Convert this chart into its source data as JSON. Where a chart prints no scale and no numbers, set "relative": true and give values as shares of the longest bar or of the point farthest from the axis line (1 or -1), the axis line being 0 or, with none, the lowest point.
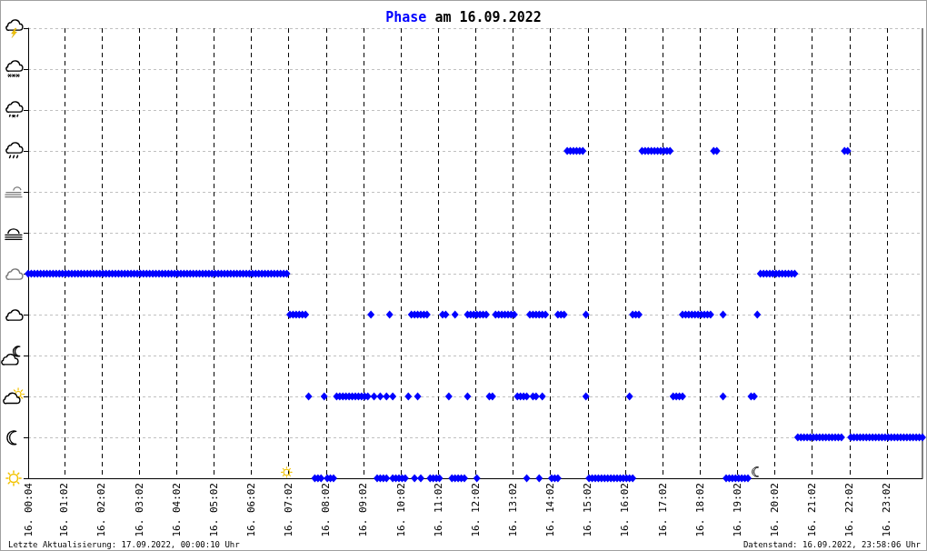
{
  "chart_data": {
    "type": "scatter",
    "title": "Phase am 16.09.2022",
    "annotations": [
      "Letzte Aktualisierung: 17.09.2022, 00:00:10 Uhr",
      "Datenstand: 16.09.2022, 23:58:06 Uhr"
    ],
    "color": "#0000ff",
    "marker": "diamond",
    "grid": true,
    "tick_labels": "x",
    "relative": true,
    "xlim": [
      "2022-09-16T00:04",
      "2022-09-16T23:59"
    ],
    "xticks": [
      {
        "value": "2022-09-16T00:04",
        "label": "16. 00:04"
      },
      {
        "value": "2022-09-16T01:02",
        "label": "16. 01:02"
      },
      {
        "value": "2022-09-16T02:02",
        "label": "16. 02:02"
      },
      {
        "value": "2022-09-16T03:02",
        "label": "16. 03:02"
      },
      {
        "value": "2022-09-16T04:02",
        "label": "16. 04:02"
      },
      {
        "value": "2022-09-16T05:02",
        "label": "16. 05:02"
      },
      {
        "value": "2022-09-16T06:02",
        "label": "16. 06:02"
      },
      {
        "value": "2022-09-16T07:02",
        "label": "16. 07:02"
      },
      {
        "value": "2022-09-16T08:02",
        "label": "16. 08:02"
      },
      {
        "value": "2022-09-16T09:02",
        "label": "16. 09:02"
      },
      {
        "value": "2022-09-16T10:02",
        "label": "16. 10:02"
      },
      {
        "value": "2022-09-16T11:02",
        "label": "16. 11:02"
      },
      {
        "value": "2022-09-16T12:02",
        "label": "16. 12:02"
      },
      {
        "value": "2022-09-16T13:02",
        "label": "16. 13:02"
      },
      {
        "value": "2022-09-16T14:02",
        "label": "16. 14:02"
      },
      {
        "value": "2022-09-16T15:02",
        "label": "16. 15:02"
      },
      {
        "value": "2022-09-16T16:02",
        "label": "16. 16:02"
      },
      {
        "value": "2022-09-16T17:02",
        "label": "16. 17:02"
      },
      {
        "value": "2022-09-16T18:02",
        "label": "16. 18:02"
      },
      {
        "value": "2022-09-16T19:02",
        "label": "16. 19:02"
      },
      {
        "value": "2022-09-16T20:02",
        "label": "16. 20:02"
      },
      {
        "value": "2022-09-16T21:02",
        "label": "16. 21:02"
      },
      {
        "value": "2022-09-16T22:02",
        "label": "16. 22:02"
      },
      {
        "value": "2022-09-16T23:02",
        "label": "16. 23:02"
      }
    ],
    "x": [
      "2022-09-16T00:04",
      "2022-09-16T00:09",
      "2022-09-16T00:14",
      "2022-09-16T00:19",
      "2022-09-16T00:24",
      "2022-09-16T00:29",
      "2022-09-16T00:34",
      "2022-09-16T00:39",
      "2022-09-16T00:44",
      "2022-09-16T00:49",
      "2022-09-16T00:54",
      "2022-09-16T00:59",
      "2022-09-16T01:04",
      "2022-09-16T01:09",
      "2022-09-16T01:14",
      "2022-09-16T01:19",
      "2022-09-16T01:24",
      "2022-09-16T01:29",
      "2022-09-16T01:34",
      "2022-09-16T01:39",
      "2022-09-16T01:44",
      "2022-09-16T01:49",
      "2022-09-16T01:54",
      "2022-09-16T01:59",
      "2022-09-16T02:04",
      "2022-09-16T02:09",
      "2022-09-16T02:14",
      "2022-09-16T02:19",
      "2022-09-16T02:24",
      "2022-09-16T02:29",
      "2022-09-16T02:34",
      "2022-09-16T02:39",
      "2022-09-16T02:44",
      "2022-09-16T02:49",
      "2022-09-16T02:54",
      "2022-09-16T02:59",
      "2022-09-16T03:04",
      "2022-09-16T03:09",
      "2022-09-16T03:14",
      "2022-09-16T03:19",
      "2022-09-16T03:24",
      "2022-09-16T03:29",
      "2022-09-16T03:34",
      "2022-09-16T03:39",
      "2022-09-16T03:44",
      "2022-09-16T03:49",
      "2022-09-16T03:54",
      "2022-09-16T03:59",
      "2022-09-16T04:04",
      "2022-09-16T04:09",
      "2022-09-16T04:14",
      "2022-09-16T04:19",
      "2022-09-16T04:24",
      "2022-09-16T04:29",
      "2022-09-16T04:34",
      "2022-09-16T04:39",
      "2022-09-16T04:44",
      "2022-09-16T04:49",
      "2022-09-16T04:54",
      "2022-09-16T04:59",
      "2022-09-16T05:04",
      "2022-09-16T05:09",
      "2022-09-16T05:14",
      "2022-09-16T05:19",
      "2022-09-16T05:24",
      "2022-09-16T05:29",
      "2022-09-16T05:34",
      "2022-09-16T05:39",
      "2022-09-16T05:44",
      "2022-09-16T05:49",
      "2022-09-16T05:54",
      "2022-09-16T05:59",
      "2022-09-16T06:04",
      "2022-09-16T06:09",
      "2022-09-16T06:14",
      "2022-09-16T06:19",
      "2022-09-16T06:24",
      "2022-09-16T06:29",
      "2022-09-16T06:34",
      "2022-09-16T06:39",
      "2022-09-16T06:44",
      "2022-09-16T06:49",
      "2022-09-16T06:54",
      "2022-09-16T06:59",
      "2022-09-16T19:39",
      "2022-09-16T19:44",
      "2022-09-16T19:49",
      "2022-09-16T19:54",
      "2022-09-16T19:59",
      "2022-09-16T20:04",
      "2022-09-16T20:09",
      "2022-09-16T20:14",
      "2022-09-16T20:19",
      "2022-09-16T20:24",
      "2022-09-16T20:29",
      "2022-09-16T20:34",
      "2022-09-16T07:04",
      "2022-09-16T07:09",
      "2022-09-16T07:14",
      "2022-09-16T07:19",
      "2022-09-16T07:24",
      "2022-09-16T07:29",
      "2022-09-16T09:14",
      "2022-09-16T09:44",
      "2022-09-16T10:19",
      "2022-09-16T10:24",
      "2022-09-16T10:29",
      "2022-09-16T10:34",
      "2022-09-16T10:39",
      "2022-09-16T10:44",
      "2022-09-16T11:09",
      "2022-09-16T11:14",
      "2022-09-16T11:29",
      "2022-09-16T11:49",
      "2022-09-16T11:54",
      "2022-09-16T11:59",
      "2022-09-16T12:04",
      "2022-09-16T12:09",
      "2022-09-16T12:14",
      "2022-09-16T12:19",
      "2022-09-16T12:34",
      "2022-09-16T12:39",
      "2022-09-16T12:44",
      "2022-09-16T12:49",
      "2022-09-16T12:54",
      "2022-09-16T12:59",
      "2022-09-16T13:04",
      "2022-09-16T13:29",
      "2022-09-16T13:34",
      "2022-09-16T13:39",
      "2022-09-16T13:44",
      "2022-09-16T13:49",
      "2022-09-16T13:54",
      "2022-09-16T14:14",
      "2022-09-16T14:19",
      "2022-09-16T14:24",
      "2022-09-16T14:59",
      "2022-09-16T16:14",
      "2022-09-16T16:19",
      "2022-09-16T16:24",
      "2022-09-16T17:34",
      "2022-09-16T17:39",
      "2022-09-16T17:44",
      "2022-09-16T17:49",
      "2022-09-16T17:54",
      "2022-09-16T17:59",
      "2022-09-16T18:04",
      "2022-09-16T18:09",
      "2022-09-16T18:14",
      "2022-09-16T18:19",
      "2022-09-16T18:39",
      "2022-09-16T19:34",
      "2022-09-16T07:34",
      "2022-09-16T07:59",
      "2022-09-16T08:19",
      "2022-09-16T08:24",
      "2022-09-16T08:29",
      "2022-09-16T08:34",
      "2022-09-16T08:39",
      "2022-09-16T08:44",
      "2022-09-16T08:49",
      "2022-09-16T08:54",
      "2022-09-16T08:59",
      "2022-09-16T09:04",
      "2022-09-16T09:09",
      "2022-09-16T09:19",
      "2022-09-16T09:29",
      "2022-09-16T09:39",
      "2022-09-16T09:49",
      "2022-09-16T10:14",
      "2022-09-16T10:29",
      "2022-09-16T11:19",
      "2022-09-16T11:49",
      "2022-09-16T12:24",
      "2022-09-16T12:29",
      "2022-09-16T13:09",
      "2022-09-16T13:14",
      "2022-09-16T13:19",
      "2022-09-16T13:24",
      "2022-09-16T13:34",
      "2022-09-16T13:39",
      "2022-09-16T13:49",
      "2022-09-16T14:59",
      "2022-09-16T16:09",
      "2022-09-16T17:19",
      "2022-09-16T17:24",
      "2022-09-16T17:29",
      "2022-09-16T17:34",
      "2022-09-16T18:39",
      "2022-09-16T19:24",
      "2022-09-16T19:29",
      "2022-09-16T07:44",
      "2022-09-16T07:49",
      "2022-09-16T07:54",
      "2022-09-16T08:04",
      "2022-09-16T08:09",
      "2022-09-16T08:14",
      "2022-09-16T09:24",
      "2022-09-16T09:29",
      "2022-09-16T09:34",
      "2022-09-16T09:39",
      "2022-09-16T09:49",
      "2022-09-16T09:54",
      "2022-09-16T09:59",
      "2022-09-16T10:04",
      "2022-09-16T10:09",
      "2022-09-16T10:24",
      "2022-09-16T10:34",
      "2022-09-16T10:49",
      "2022-09-16T10:54",
      "2022-09-16T10:59",
      "2022-09-16T11:04",
      "2022-09-16T11:24",
      "2022-09-16T11:29",
      "2022-09-16T11:34",
      "2022-09-16T11:39",
      "2022-09-16T11:44",
      "2022-09-16T12:04",
      "2022-09-16T13:24",
      "2022-09-16T13:44",
      "2022-09-16T14:04",
      "2022-09-16T14:09",
      "2022-09-16T14:14",
      "2022-09-16T15:04",
      "2022-09-16T15:09",
      "2022-09-16T15:14",
      "2022-09-16T15:19",
      "2022-09-16T15:24",
      "2022-09-16T15:29",
      "2022-09-16T15:34",
      "2022-09-16T15:39",
      "2022-09-16T15:44",
      "2022-09-16T15:49",
      "2022-09-16T15:54",
      "2022-09-16T15:59",
      "2022-09-16T16:04",
      "2022-09-16T16:09",
      "2022-09-16T16:14",
      "2022-09-16T18:44",
      "2022-09-16T18:49",
      "2022-09-16T18:54",
      "2022-09-16T18:59",
      "2022-09-16T19:04",
      "2022-09-16T19:09",
      "2022-09-16T19:14",
      "2022-09-16T19:19",
      "2022-09-16T14:29",
      "2022-09-16T14:34",
      "2022-09-16T14:39",
      "2022-09-16T14:44",
      "2022-09-16T14:49",
      "2022-09-16T14:54",
      "2022-09-16T16:29",
      "2022-09-16T16:34",
      "2022-09-16T16:39",
      "2022-09-16T16:44",
      "2022-09-16T16:49",
      "2022-09-16T16:54",
      "2022-09-16T16:59",
      "2022-09-16T17:04",
      "2022-09-16T17:09",
      "2022-09-16T17:14",
      "2022-09-16T18:24",
      "2022-09-16T18:29",
      "2022-09-16T21:54",
      "2022-09-16T21:59",
      "2022-09-16T20:39",
      "2022-09-16T20:44",
      "2022-09-16T20:49",
      "2022-09-16T20:54",
      "2022-09-16T20:59",
      "2022-09-16T21:04",
      "2022-09-16T21:09",
      "2022-09-16T21:14",
      "2022-09-16T21:19",
      "2022-09-16T21:24",
      "2022-09-16T21:29",
      "2022-09-16T21:34",
      "2022-09-16T21:39",
      "2022-09-16T21:44",
      "2022-09-16T21:49",
      "2022-09-16T22:04",
      "2022-09-16T22:09",
      "2022-09-16T22:14",
      "2022-09-16T22:19",
      "2022-09-16T22:24",
      "2022-09-16T22:29",
      "2022-09-16T22:34",
      "2022-09-16T22:39",
      "2022-09-16T22:44",
      "2022-09-16T22:49",
      "2022-09-16T22:54",
      "2022-09-16T22:59",
      "2022-09-16T23:04",
      "2022-09-16T23:09",
      "2022-09-16T23:14",
      "2022-09-16T23:19",
      "2022-09-16T23:24",
      "2022-09-16T23:29",
      "2022-09-16T23:34",
      "2022-09-16T23:39",
      "2022-09-16T23:44",
      "2022-09-16T23:49",
      "2022-09-16T23:54",
      "2022-09-16T23:59"
    ],
    "values": [
      0.625,
      0.625,
      0.625,
      0.625,
      0.625,
      0.625,
      0.625,
      0.625,
      0.625,
      0.625,
      0.625,
      0.625,
      0.625,
      0.625,
      0.625,
      0.625,
      0.625,
      0.625,
      0.625,
      0.625,
      0.625,
      0.625,
      0.625,
      0.625,
      0.625,
      0.625,
      0.625,
      0.625,
      0.625,
      0.625,
      0.625,
      0.625,
      0.625,
      0.625,
      0.625,
      0.625,
      0.625,
      0.625,
      0.625,
      0.625,
      0.625,
      0.625,
      0.625,
      0.625,
      0.625,
      0.625,
      0.625,
      0.625,
      0.625,
      0.625,
      0.625,
      0.625,
      0.625,
      0.625,
      0.625,
      0.625,
      0.625,
      0.625,
      0.625,
      0.625,
      0.625,
      0.625,
      0.625,
      0.625,
      0.625,
      0.625,
      0.625,
      0.625,
      0.625,
      0.625,
      0.625,
      0.625,
      0.625,
      0.625,
      0.625,
      0.625,
      0.625,
      0.625,
      0.625,
      0.625,
      0.625,
      0.625,
      0.625,
      0.625,
      0.625,
      0.625,
      0.625,
      0.625,
      0.625,
      0.625,
      0.625,
      0.625,
      0.625,
      0.625,
      0.625,
      0.625,
      0.5,
      0.5,
      0.5,
      0.5,
      0.5,
      0.5,
      0.5,
      0.5,
      0.5,
      0.5,
      0.5,
      0.5,
      0.5,
      0.5,
      0.5,
      0.5,
      0.5,
      0.5,
      0.5,
      0.5,
      0.5,
      0.5,
      0.5,
      0.5,
      0.5,
      0.5,
      0.5,
      0.5,
      0.5,
      0.5,
      0.5,
      0.5,
      0.5,
      0.5,
      0.5,
      0.5,
      0.5,
      0.5,
      0.5,
      0.5,
      0.5,
      0.5,
      0.5,
      0.5,
      0.5,
      0.5,
      0.5,
      0.5,
      0.5,
      0.5,
      0.5,
      0.5,
      0.5,
      0.5,
      0.5,
      0.5,
      0.25,
      0.25,
      0.25,
      0.25,
      0.25,
      0.25,
      0.25,
      0.25,
      0.25,
      0.25,
      0.25,
      0.25,
      0.25,
      0.25,
      0.25,
      0.25,
      0.25,
      0.25,
      0.25,
      0.25,
      0.25,
      0.25,
      0.25,
      0.25,
      0.25,
      0.25,
      0.25,
      0.25,
      0.25,
      0.25,
      0.25,
      0.25,
      0.25,
      0.25,
      0.25,
      0.25,
      0.25,
      0.25,
      0.25,
      0,
      0,
      0,
      0,
      0,
      0,
      0,
      0,
      0,
      0,
      0,
      0,
      0,
      0,
      0,
      0,
      0,
      0,
      0,
      0,
      0,
      0,
      0,
      0,
      0,
      0,
      0,
      0,
      0,
      0,
      0,
      0,
      0,
      0,
      0,
      0,
      0,
      0,
      0,
      0,
      0,
      0,
      0,
      0,
      0,
      0,
      0,
      0,
      0,
      0,
      0,
      0,
      0,
      0,
      0,
      1,
      1,
      1,
      1,
      1,
      1,
      1,
      1,
      1,
      1,
      1,
      1,
      1,
      1,
      1,
      1,
      1,
      1,
      1,
      1,
      0.125,
      0.125,
      0.125,
      0.125,
      0.125,
      0.125,
      0.125,
      0.125,
      0.125,
      0.125,
      0.125,
      0.125,
      0.125,
      0.125,
      0.125,
      0.125,
      0.125,
      0.125,
      0.125,
      0.125,
      0.125,
      0.125,
      0.125,
      0.125,
      0.125,
      0.125,
      0.125,
      0.125,
      0.125,
      0.125,
      0.125,
      0.125,
      0.125,
      0.125,
      0.125,
      0.125,
      0.125,
      0.125,
      0.125
    ]
  }
}
